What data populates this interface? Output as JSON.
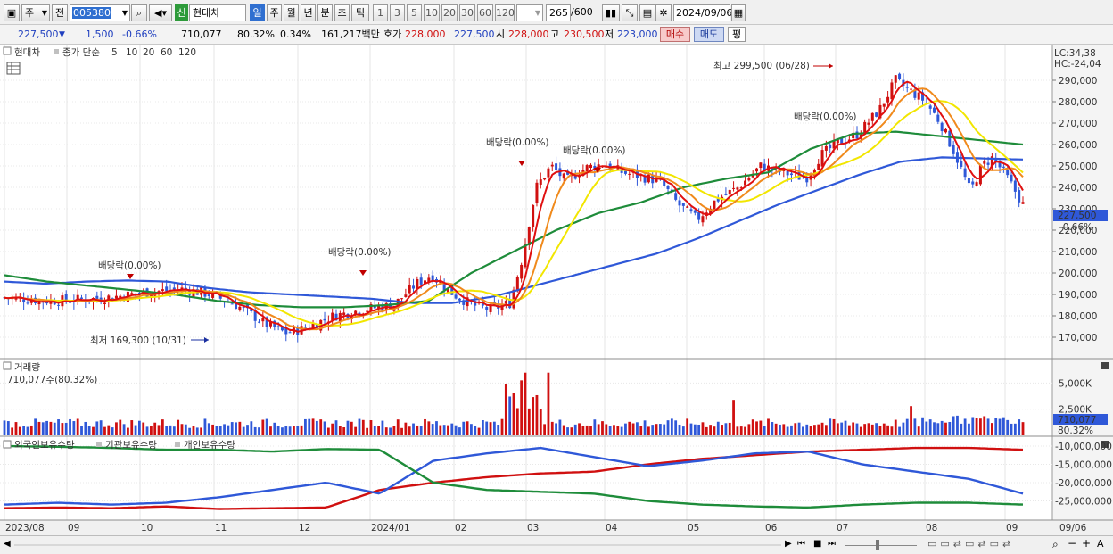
{
  "toolbar": {
    "type_1": "주",
    "type_2": "전",
    "code": "005380",
    "badge": "신",
    "name": "현대차",
    "periods": [
      "일",
      "주",
      "월",
      "년",
      "분",
      "초",
      "틱"
    ],
    "period_selected": "일",
    "minutes": [
      "1",
      "3",
      "5",
      "10",
      "20",
      "30",
      "60",
      "120"
    ],
    "count_value": "265",
    "count_max": "/600",
    "date": "2024/09/06"
  },
  "quote": {
    "price": "227,500",
    "change": "1,500",
    "change_pct": "-0.66%",
    "volume": "710,077",
    "vol_ratio": "80.32%",
    "turnover": "0.34%",
    "amount": "161,217백만",
    "ask_label": "호가",
    "ask": "228,000",
    "bid": "227,500",
    "open_label": "시",
    "open": "228,000",
    "high_label": "고",
    "high": "230,500",
    "low_label": "저",
    "low": "223,000",
    "buy": "매수",
    "sell": "매도",
    "eval": "평"
  },
  "price_panel": {
    "name": "현대차",
    "ma_title": "종가 단순",
    "mas": [
      {
        "label": "5",
        "color": "#e01010"
      },
      {
        "label": "10",
        "color": "#f08a1c"
      },
      {
        "label": "20",
        "color": "#f2e600"
      },
      {
        "label": "60",
        "color": "#1e8c3a"
      },
      {
        "label": "120",
        "color": "#2f58d8"
      }
    ],
    "lc": "LC:34,38",
    "hc": "HC:-24,04",
    "last_price_tag": "227,500",
    "last_pct_tag": "-0.66%",
    "y_ticks": [
      "290,000",
      "280,000",
      "270,000",
      "260,000",
      "250,000",
      "240,000",
      "230,000",
      "220,000",
      "210,000",
      "200,000",
      "190,000",
      "180,000",
      "170,000"
    ],
    "annotations": {
      "high": "최고 299,500 (06/28)",
      "low": "최저 169,300 (10/31)",
      "div1": "배당락(0.00%)",
      "div2": "배당락(0.00%)",
      "div3": "배당락(0.00%)",
      "div4": "배당락(0.00%)",
      "div5": "배당락(0.00%)"
    }
  },
  "volume_panel": {
    "title": "거래량",
    "value": "710,077주(80.32%)",
    "y_ticks": [
      "5,000K",
      "2,500K"
    ],
    "tag_value": "710,077",
    "tag_pct": "80.32%"
  },
  "holdings_panel": {
    "series": [
      {
        "name": "외국인보유수량",
        "color": "#d01010"
      },
      {
        "name": "기관보유수량",
        "color": "#2f58d8"
      },
      {
        "name": "개인보유수량",
        "color": "#1e8c3a"
      }
    ],
    "y_ticks": [
      "-10,000,000",
      "-15,000,000",
      "-20,000,000",
      "-25,000,000"
    ]
  },
  "x_axis": [
    "2023/08",
    "09",
    "10",
    "11",
    "12",
    "2024/01",
    "02",
    "03",
    "04",
    "05",
    "06",
    "07",
    "08",
    "09"
  ],
  "x_axis_right": "09/06",
  "chart_data": {
    "type": "candlestick",
    "x_start": "2023/08",
    "x_end": "2024/09/06",
    "ylim": [
      165000,
      302000
    ],
    "ma_periods": [
      5,
      10,
      20,
      60,
      120
    ],
    "series": [
      {
        "name": "120",
        "values": [
          196000,
          195000,
          196000,
          196500,
          196000,
          193000,
          191000,
          190000,
          189000,
          188000,
          186000,
          186000,
          189000,
          194000,
          199000,
          204000,
          209000,
          216000,
          224000,
          232000,
          239000,
          246000,
          252000,
          254000,
          253500,
          253000
        ]
      },
      {
        "name": "60",
        "values": [
          199000,
          196000,
          194000,
          192000,
          190000,
          187000,
          185000,
          184000,
          184000,
          185000,
          187000,
          200000,
          210000,
          220000,
          228000,
          233000,
          240000,
          244000,
          247000,
          258000,
          265000,
          266000,
          264000,
          262000,
          260000
        ]
      }
    ],
    "volume": {
      "ylim": [
        0,
        7000000
      ],
      "last": 710077
    },
    "holdings": [
      {
        "name": "외국인보유수량",
        "values": [
          -27000000,
          -26800000,
          -27000000,
          -26500000,
          -27200000,
          -27000000,
          -26800000,
          -22000000,
          -20000000,
          -18500000,
          -17500000,
          -17000000,
          -15000000,
          -13500000,
          -12500000,
          -11500000,
          -11000000,
          -10500000,
          -10500000,
          -11000000
        ]
      },
      {
        "name": "기관보유수량",
        "values": [
          -26000000,
          -25500000,
          -26000000,
          -25500000,
          -24000000,
          -22000000,
          -20000000,
          -23000000,
          -14000000,
          -12000000,
          -10500000,
          -13000000,
          -15500000,
          -14000000,
          -12000000,
          -11500000,
          -15000000,
          -17000000,
          -19000000,
          -23000000
        ]
      },
      {
        "name": "개인보유수량",
        "values": [
          -10000000,
          -10200000,
          -10500000,
          -11000000,
          -11000000,
          -11500000,
          -10800000,
          -11000000,
          -20000000,
          -22000000,
          -22500000,
          -23000000,
          -25000000,
          -26000000,
          -26500000,
          -26800000,
          -26000000,
          -25500000,
          -25500000,
          -26000000
        ]
      }
    ]
  }
}
